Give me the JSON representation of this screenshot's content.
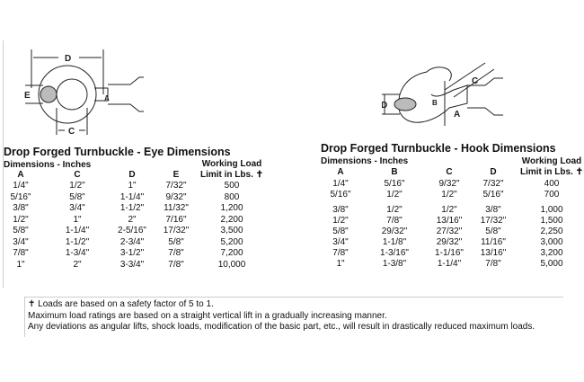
{
  "eye": {
    "title": "Drop Forged Turnbuckle - Eye Dimensions",
    "subheader": "Dimensions - Inches",
    "wll_header": [
      "Working Load",
      "Limit in Lbs. ✝"
    ],
    "columns": [
      "A",
      "C",
      "D",
      "E"
    ],
    "rows": [
      [
        "1/4\"",
        "1/2\"",
        "1\"",
        "7/32\"",
        "500"
      ],
      [
        "5/16\"",
        "5/8\"",
        "1-1/4\"",
        "9/32\"",
        "800"
      ],
      [
        "3/8\"",
        "3/4\"",
        "1-1/2\"",
        "11/32\"",
        "1,200"
      ],
      [
        "1/2\"",
        "1\"",
        "2\"",
        "7/16\"",
        "2,200"
      ],
      [
        "5/8\"",
        "1-1/4\"",
        "2-5/16\"",
        "17/32\"",
        "3,500"
      ],
      [
        "3/4\"",
        "1-1/2\"",
        "2-3/4\"",
        "5/8\"",
        "5,200"
      ],
      [
        "7/8\"",
        "1-3/4\"",
        "3-1/2\"",
        "7/8\"",
        "7,200"
      ],
      [
        "1\"",
        "2\"",
        "3-3/4\"",
        "7/8\"",
        "10,000"
      ]
    ],
    "diagram_labels": [
      "D",
      "E",
      "A",
      "C"
    ]
  },
  "hook": {
    "title": "Drop Forged Turnbuckle - Hook Dimensions",
    "subheader": "Dimensions - Inches",
    "wll_header": [
      "Working Load",
      "Limit in Lbs. ✝"
    ],
    "columns": [
      "A",
      "B",
      "C",
      "D"
    ],
    "rows": [
      [
        "1/4\"",
        "5/16\"",
        "9/32\"",
        "7/32\"",
        "400"
      ],
      [
        "5/16\"",
        "1/2\"",
        "1/2\"",
        "5/16\"",
        "700"
      ],
      [
        "3/8\"",
        "1/2\"",
        "1/2\"",
        "3/8\"",
        "1,000"
      ],
      [
        "1/2\"",
        "7/8\"",
        "13/16\"",
        "17/32\"",
        "1,500"
      ],
      [
        "5/8\"",
        "29/32\"",
        "27/32\"",
        "5/8\"",
        "2,250"
      ],
      [
        "3/4\"",
        "1-1/8\"",
        "29/32\"",
        "11/16\"",
        "3,000"
      ],
      [
        "7/8\"",
        "1-3/16\"",
        "1-1/16\"",
        "13/16\"",
        "3,200"
      ],
      [
        "1\"",
        "1-3/8\"",
        "1-1/4\"",
        "7/8\"",
        "5,000"
      ]
    ],
    "diagram_labels": [
      "D",
      "B",
      "A",
      "C"
    ]
  },
  "notes": [
    "✝ Loads are based on a safety factor of 5 to 1.",
    "Maximum load ratings are based on a straight vertical lift in a gradually increasing manner.",
    "Any deviations as angular lifts, shock loads, modification of the basic part, etc., will result in drastically reduced maximum loads."
  ]
}
